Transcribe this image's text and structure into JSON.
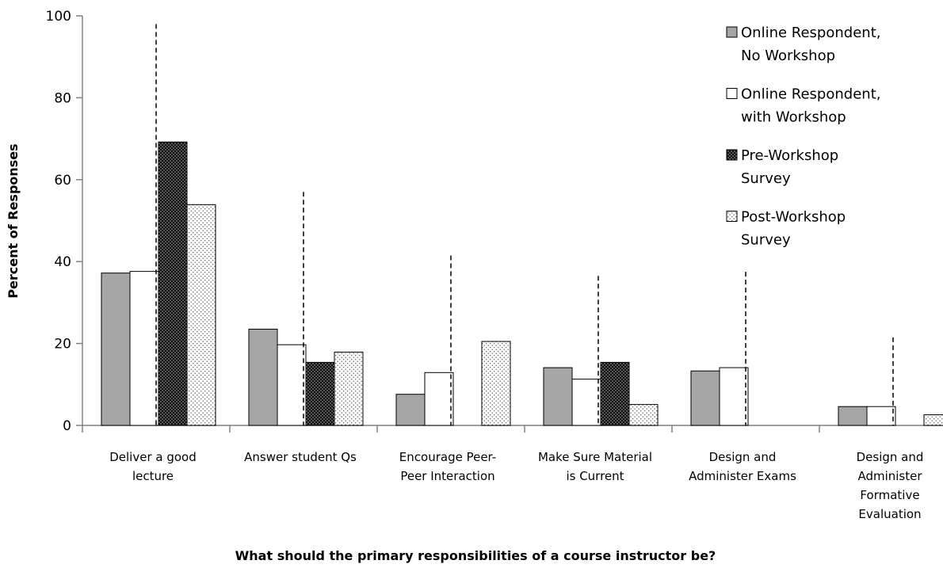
{
  "chart_data": {
    "type": "bar",
    "title": "",
    "xlabel": "What should the primary responsibilities of a course instructor be?",
    "ylabel": "Percent of Responses",
    "ylim": [
      0,
      100
    ],
    "yticks": [
      0,
      20,
      40,
      60,
      80,
      100
    ],
    "grid": false,
    "legend": "top-right",
    "categories": [
      [
        "Deliver a good",
        "lecture"
      ],
      [
        "Answer student Qs"
      ],
      [
        "Encourage Peer-",
        "Peer Interaction"
      ],
      [
        "Make Sure Material",
        "is Current"
      ],
      [
        "Design and",
        "Administer Exams"
      ],
      [
        "Design and",
        "Administer",
        "Formative",
        "Evaluation"
      ]
    ],
    "series": [
      {
        "name": [
          "Online Respondent,",
          "No Workshop"
        ],
        "style": "gray",
        "color": "#a6a6a6",
        "values": [
          37.2,
          23.5,
          7.6,
          14.1,
          13.3,
          4.6
        ]
      },
      {
        "name": [
          "Online Respondent,",
          "with Workshop"
        ],
        "style": "white",
        "color": "#ffffff",
        "values": [
          37.6,
          19.7,
          12.9,
          11.3,
          14.1,
          4.6
        ]
      },
      {
        "name": [
          "Pre-Workshop",
          "Survey"
        ],
        "style": "black-dotted",
        "color": "#1a1a1a",
        "values": [
          69.2,
          15.4,
          0,
          15.4,
          0,
          0
        ]
      },
      {
        "name": [
          "Post-Workshop",
          "Survey"
        ],
        "style": "white-dotted",
        "color": "#f2f2f2",
        "values": [
          53.9,
          17.9,
          20.5,
          5.1,
          0,
          2.6
        ]
      }
    ],
    "reference_lines": [
      98,
      57,
      41.5,
      36.5,
      37.5,
      21.5
    ]
  }
}
